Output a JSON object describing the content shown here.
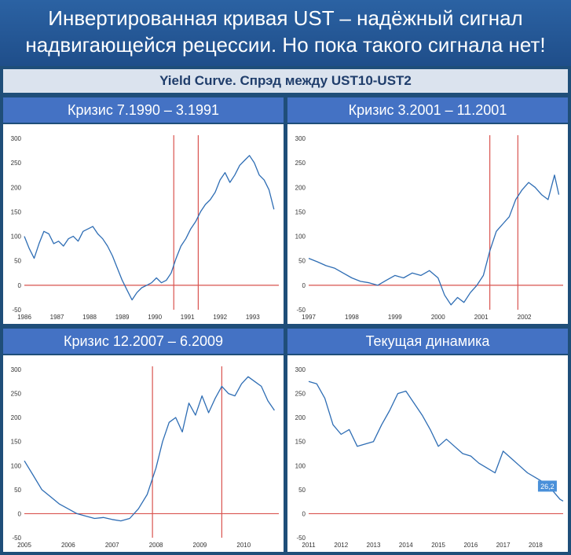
{
  "header": {
    "title_line1": "Инвертированная кривая UST – надёжный сигнал",
    "title_line2": "надвигающейся рецессии. Но пока такого сигнала нет!"
  },
  "subtitle": "Yield Curve. Спрэд между UST10-UST2",
  "colors": {
    "line": "#2e6db4",
    "marker": "#d9534f",
    "callout": "#4a90d9"
  },
  "chart_data": [
    {
      "type": "line",
      "title": "Кризис 7.1990 – 3.1991",
      "ylim": [
        -50,
        300
      ],
      "yticks": [
        -50,
        0,
        50,
        100,
        150,
        200,
        250,
        300
      ],
      "xlim": [
        1986,
        1993.8
      ],
      "xticks": [
        "1986",
        "1987",
        "1988",
        "1989",
        "1990",
        "1991",
        "1992",
        "1993"
      ],
      "grid": false,
      "markers": [
        1990.58,
        1991.33
      ],
      "series": [
        {
          "x": [
            1986.0,
            1986.15,
            1986.3,
            1986.45,
            1986.6,
            1986.75,
            1986.9,
            1987.05,
            1987.2,
            1987.35,
            1987.5,
            1987.65,
            1987.8,
            1987.95,
            1988.1,
            1988.25,
            1988.4,
            1988.55,
            1988.7,
            1988.85,
            1989.0,
            1989.15,
            1989.3,
            1989.45,
            1989.6,
            1989.75,
            1989.9,
            1990.05,
            1990.2,
            1990.35,
            1990.5,
            1990.65,
            1990.8,
            1990.95,
            1991.1,
            1991.25,
            1991.4,
            1991.55,
            1991.7,
            1991.85,
            1992.0,
            1992.15,
            1992.3,
            1992.45,
            1992.6,
            1992.75,
            1992.9,
            1993.05,
            1993.2,
            1993.35,
            1993.5,
            1993.65
          ],
          "values": [
            100,
            75,
            55,
            85,
            110,
            105,
            85,
            90,
            80,
            95,
            100,
            90,
            110,
            115,
            120,
            105,
            95,
            80,
            60,
            35,
            10,
            -10,
            -30,
            -15,
            -5,
            0,
            5,
            15,
            5,
            10,
            25,
            55,
            80,
            95,
            115,
            130,
            150,
            165,
            175,
            190,
            215,
            230,
            210,
            225,
            245,
            255,
            265,
            250,
            225,
            215,
            195,
            155
          ]
        }
      ]
    },
    {
      "type": "line",
      "title": "Кризис 3.2001 – 11.2001",
      "ylim": [
        -50,
        300
      ],
      "yticks": [
        -50,
        0,
        50,
        100,
        150,
        200,
        250,
        300
      ],
      "xlim": [
        1997,
        2002.9
      ],
      "xticks": [
        "1997",
        "1998",
        "1999",
        "2000",
        "2001",
        "2002"
      ],
      "grid": false,
      "markers": [
        2001.2,
        2001.85
      ],
      "series": [
        {
          "x": [
            1997.0,
            1997.2,
            1997.4,
            1997.6,
            1997.8,
            1998.0,
            1998.2,
            1998.4,
            1998.6,
            1998.8,
            1999.0,
            1999.2,
            1999.4,
            1999.6,
            1999.8,
            2000.0,
            2000.15,
            2000.3,
            2000.45,
            2000.6,
            2000.75,
            2000.9,
            2001.05,
            2001.2,
            2001.35,
            2001.5,
            2001.65,
            2001.8,
            2001.95,
            2002.1,
            2002.25,
            2002.4,
            2002.55,
            2002.7,
            2002.8
          ],
          "values": [
            55,
            48,
            40,
            35,
            25,
            15,
            8,
            5,
            0,
            10,
            20,
            15,
            25,
            20,
            30,
            15,
            -20,
            -40,
            -25,
            -35,
            -15,
            0,
            20,
            70,
            110,
            125,
            140,
            175,
            195,
            210,
            200,
            185,
            175,
            225,
            185
          ]
        }
      ]
    },
    {
      "type": "line",
      "title": "Кризис 12.2007 – 6.2009",
      "ylim": [
        -50,
        300
      ],
      "yticks": [
        -50,
        0,
        50,
        100,
        150,
        200,
        250,
        300
      ],
      "xlim": [
        2005,
        2010.8
      ],
      "xticks": [
        "2005",
        "2006",
        "2007",
        "2008",
        "2009",
        "2010"
      ],
      "grid": false,
      "markers": [
        2007.92,
        2009.5
      ],
      "series": [
        {
          "x": [
            2005.0,
            2005.2,
            2005.4,
            2005.6,
            2005.8,
            2006.0,
            2006.2,
            2006.4,
            2006.6,
            2006.8,
            2007.0,
            2007.2,
            2007.4,
            2007.6,
            2007.8,
            2008.0,
            2008.15,
            2008.3,
            2008.45,
            2008.6,
            2008.75,
            2008.9,
            2009.05,
            2009.2,
            2009.35,
            2009.5,
            2009.65,
            2009.8,
            2009.95,
            2010.1,
            2010.25,
            2010.4,
            2010.55,
            2010.7
          ],
          "values": [
            110,
            80,
            50,
            35,
            20,
            10,
            0,
            -5,
            -10,
            -8,
            -12,
            -15,
            -10,
            10,
            40,
            95,
            150,
            190,
            200,
            170,
            230,
            205,
            245,
            210,
            240,
            265,
            250,
            245,
            270,
            285,
            275,
            265,
            235,
            215
          ]
        }
      ]
    },
    {
      "type": "line",
      "title": "Текущая динамика",
      "ylim": [
        -50,
        300
      ],
      "yticks": [
        -50,
        0,
        50,
        100,
        150,
        200,
        250,
        300
      ],
      "xlim": [
        2011,
        2018.85
      ],
      "xticks": [
        "2011",
        "2012",
        "2013",
        "2014",
        "2015",
        "2016",
        "2017",
        "2018"
      ],
      "grid": false,
      "markers": [],
      "callout": {
        "label": "26,2",
        "x": 2018.8,
        "y": 26.2
      },
      "series": [
        {
          "x": [
            2011.0,
            2011.25,
            2011.5,
            2011.75,
            2012.0,
            2012.25,
            2012.5,
            2012.75,
            2013.0,
            2013.25,
            2013.5,
            2013.75,
            2014.0,
            2014.25,
            2014.5,
            2014.75,
            2015.0,
            2015.25,
            2015.5,
            2015.75,
            2016.0,
            2016.25,
            2016.5,
            2016.75,
            2017.0,
            2017.25,
            2017.5,
            2017.75,
            2018.0,
            2018.25,
            2018.5,
            2018.75,
            2018.85
          ],
          "values": [
            275,
            270,
            240,
            185,
            165,
            175,
            140,
            145,
            150,
            185,
            215,
            250,
            255,
            230,
            205,
            175,
            140,
            155,
            140,
            125,
            120,
            105,
            95,
            85,
            130,
            115,
            100,
            85,
            75,
            65,
            50,
            30,
            26.2
          ]
        }
      ]
    }
  ]
}
